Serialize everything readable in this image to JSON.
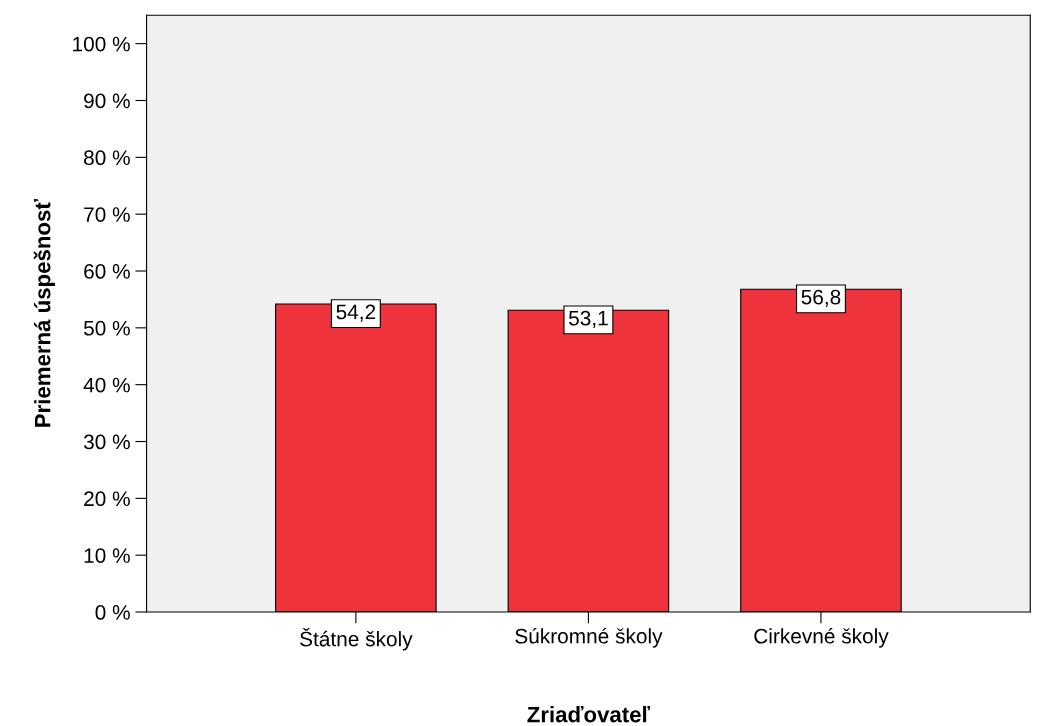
{
  "chart_data": {
    "type": "bar",
    "xlabel": "Zriaďovateľ",
    "ylabel": "Priemerná úspešnosť",
    "categories": [
      "Štátne školy",
      "Súkromné školy",
      "Cirkevné školy"
    ],
    "values": [
      54.2,
      53.1,
      56.8
    ],
    "value_labels": [
      "54,2",
      "53,1",
      "56,8"
    ],
    "color": "#ee333d",
    "ylim": [
      0,
      105
    ],
    "yticks": [
      {
        "value": 0,
        "label": "0 %"
      },
      {
        "value": 10,
        "label": "10 %"
      },
      {
        "value": 20,
        "label": "20 %"
      },
      {
        "value": 30,
        "label": "30 %"
      },
      {
        "value": 40,
        "label": "40 %"
      },
      {
        "value": 50,
        "label": "50 %"
      },
      {
        "value": 60,
        "label": "60 %"
      },
      {
        "value": 70,
        "label": "70 %"
      },
      {
        "value": 80,
        "label": "80 %"
      },
      {
        "value": 90,
        "label": "90 %"
      },
      {
        "value": 100,
        "label": "100 %"
      }
    ],
    "grid": false
  }
}
